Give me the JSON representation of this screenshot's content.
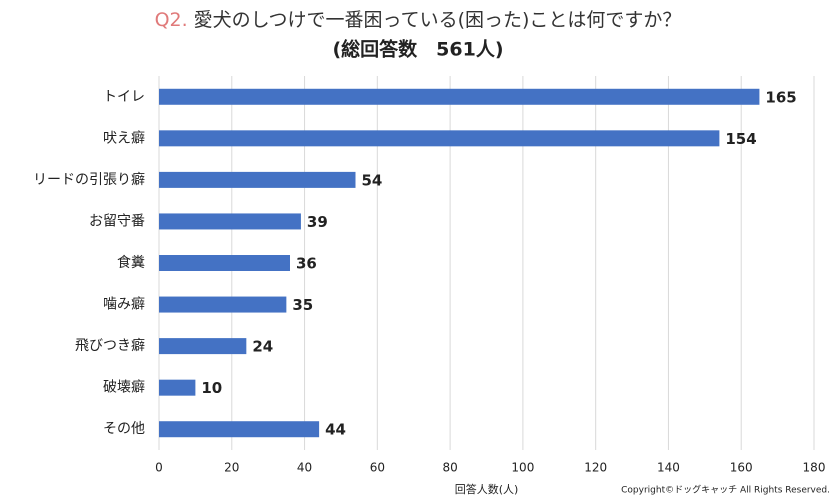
{
  "chart_data": {
    "type": "barh",
    "title_prefix": "Q2.",
    "title": "愛犬のしつけで一番困っている(困った)ことは何ですか？",
    "subtitle": "(総回答数　561人)",
    "categories": [
      "トイレ",
      "吠え癖",
      "リードの引張り癖",
      "お留守番",
      "食糞",
      "噛み癖",
      "飛びつき癖",
      "破壊癖",
      "その他"
    ],
    "values": [
      165,
      154,
      54,
      39,
      36,
      35,
      24,
      10,
      44
    ],
    "color": "#4472c4",
    "xlim": [
      0,
      180
    ],
    "xticks": [
      0,
      20,
      40,
      60,
      80,
      100,
      120,
      140,
      160,
      180
    ],
    "xlabel": "回答人数(人)",
    "grid": true,
    "copyright": "Copyright©ドッグキャッチ All Rights Reserved."
  }
}
